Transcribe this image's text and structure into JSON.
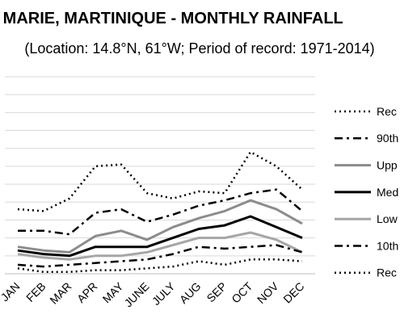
{
  "chart_data": {
    "type": "line",
    "title": "STE MARIE, MARTINIQUE - MONTHLY RAINFALL",
    "subtitle": "(Location: 14.8°N, 61°W; Period of record: 1971-2014)",
    "xlabel": "",
    "ylabel": "",
    "categories": [
      "JAN",
      "FEB",
      "MAR",
      "APR",
      "MAY",
      "JUNE",
      "JULY",
      "AUG",
      "SEP",
      "OCT",
      "NOV",
      "DEC"
    ],
    "ylim": [
      0,
      11
    ],
    "grid": true,
    "legend": "right",
    "series": [
      {
        "name": "Rec",
        "style": "dotted",
        "color": "#000000",
        "values": [
          3.6,
          3.5,
          4.2,
          6.0,
          6.1,
          4.5,
          4.2,
          4.6,
          4.5,
          6.8,
          6.0,
          4.7
        ]
      },
      {
        "name": "90th",
        "style": "dashdot",
        "color": "#000000",
        "values": [
          2.4,
          2.4,
          2.2,
          3.4,
          3.6,
          2.9,
          3.3,
          3.8,
          4.1,
          4.5,
          4.7,
          3.5
        ]
      },
      {
        "name": "Upp",
        "style": "solid",
        "color": "#8c8c8c",
        "values": [
          1.5,
          1.3,
          1.2,
          2.1,
          2.4,
          1.9,
          2.6,
          3.1,
          3.5,
          4.1,
          3.6,
          2.8
        ]
      },
      {
        "name": "Med",
        "style": "solid",
        "color": "#000000",
        "values": [
          1.3,
          1.1,
          1.0,
          1.5,
          1.5,
          1.5,
          2.0,
          2.5,
          2.7,
          3.2,
          2.6,
          2.0
        ]
      },
      {
        "name": "Low",
        "style": "solid",
        "color": "#a6a6a6",
        "values": [
          1.1,
          0.9,
          0.8,
          1.0,
          1.0,
          1.2,
          1.6,
          2.0,
          2.0,
          2.3,
          1.9,
          1.2
        ]
      },
      {
        "name": "10th",
        "style": "dashdot",
        "color": "#000000",
        "values": [
          0.5,
          0.4,
          0.5,
          0.6,
          0.7,
          0.8,
          1.1,
          1.5,
          1.4,
          1.5,
          1.6,
          1.2
        ]
      },
      {
        "name": "Rec",
        "style": "dotted",
        "color": "#000000",
        "values": [
          0.3,
          0.1,
          0.1,
          0.2,
          0.2,
          0.3,
          0.4,
          0.7,
          0.5,
          0.8,
          0.8,
          0.7
        ]
      }
    ]
  }
}
